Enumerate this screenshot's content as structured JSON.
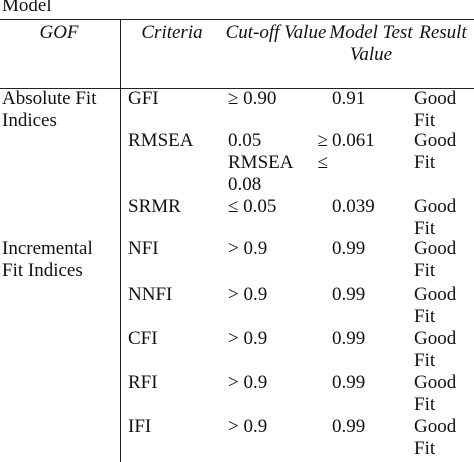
{
  "caption": "Model",
  "table": {
    "header": [
      "GOF",
      "Criteria",
      "Cut-off Value",
      "Model Test Value",
      "Result"
    ],
    "groups": [
      {
        "name": "Absolute Fit Indices",
        "rows": [
          [
            "GFI",
            "≥ 0.90",
            "0.91",
            "Good Fit"
          ],
          [
            "RMSEA",
            "0.05 ≥ RMSEA ≤ 0.08",
            "0.061",
            "Good Fit"
          ],
          [
            "SRMR",
            "≤ 0.05",
            "0.039",
            "Good Fit"
          ]
        ]
      },
      {
        "name": "Incremental Fit Indices",
        "rows": [
          [
            "NFI",
            "> 0.9",
            "0.99",
            "Good Fit"
          ],
          [
            "NNFI",
            "> 0.9",
            "0.99",
            "Good Fit"
          ],
          [
            "CFI",
            "> 0.9",
            "0.99",
            "Good Fit"
          ],
          [
            "RFI",
            "> 0.9",
            "0.99",
            "Good Fit"
          ],
          [
            "IFI",
            "> 0.9",
            "0.99",
            "Good Fit"
          ]
        ]
      }
    ]
  }
}
